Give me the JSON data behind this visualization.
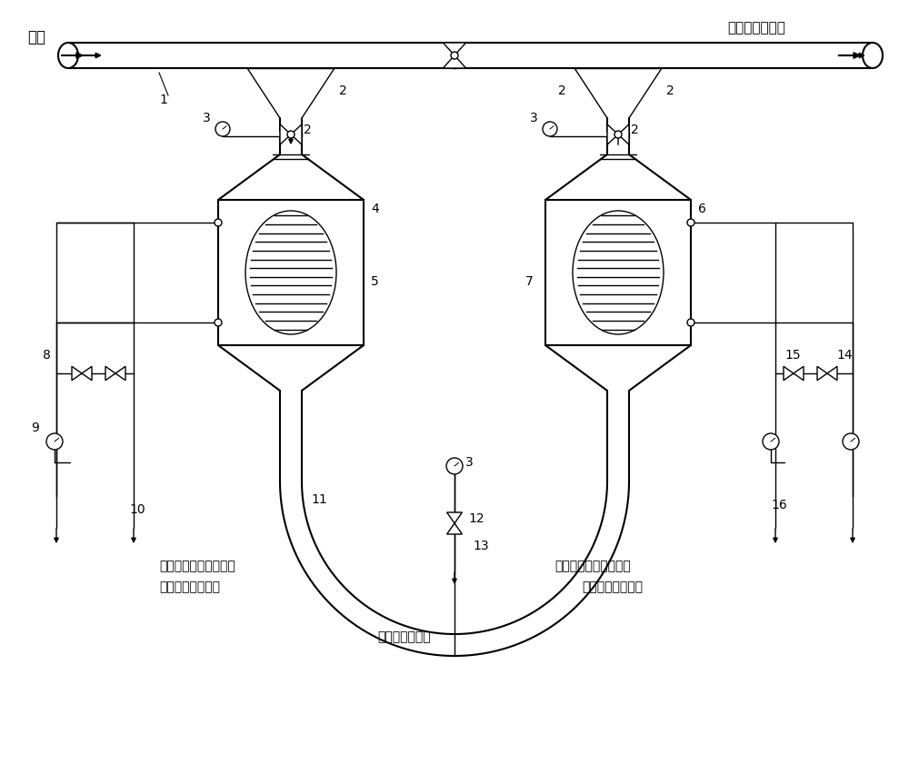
{
  "bg_color": "#ffffff",
  "line_color": "#000000",
  "fig_width": 10.0,
  "fig_height": 8.41,
  "lw": 1.0,
  "lw2": 1.5,
  "labels": {
    "tail_gas_in": "尾气",
    "connect_boiler_burner": "接至锅炉燃烧器",
    "cold_water": "来自锅炉汽水系统冷水",
    "hot_water": "来自锅炉汽水系统热水",
    "connect_deox": "接至锅炉除氧系统",
    "connect_boiler_steam": "接至锅炉汽水系统",
    "connect_condensate": "接冷凝水回收池",
    "n1": "1",
    "n2": "2",
    "n3": "3",
    "n4": "4",
    "n5": "5",
    "n6": "6",
    "n7": "7",
    "n8": "8",
    "n9": "9",
    "n10": "10",
    "n11": "11",
    "n12": "12",
    "n13": "13",
    "n14": "14",
    "n15": "15",
    "n16": "16"
  }
}
